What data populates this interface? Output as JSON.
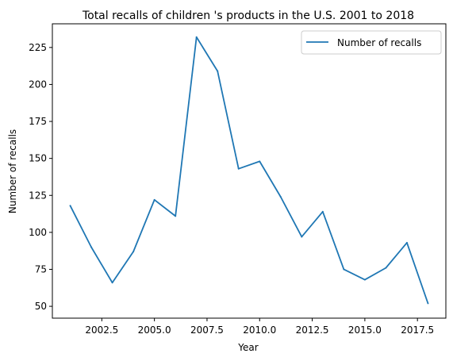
{
  "chart_data": {
    "type": "line",
    "title": "Total recalls of children 's products in the U.S. 2001 to 2018",
    "xlabel": "Year",
    "ylabel": "Number of recalls",
    "x": [
      2001,
      2002,
      2003,
      2004,
      2005,
      2006,
      2007,
      2008,
      2009,
      2010,
      2011,
      2012,
      2013,
      2014,
      2015,
      2016,
      2017,
      2018
    ],
    "series": [
      {
        "name": "Number of recalls",
        "color": "#1f77b4",
        "values": [
          118,
          90,
          66,
          87,
          122,
          111,
          232,
          209,
          143,
          148,
          124,
          97,
          114,
          75,
          68,
          76,
          93,
          52
        ]
      }
    ],
    "xlim": [
      2000.15,
      2018.85
    ],
    "ylim": [
      42,
      241
    ],
    "xticks": [
      2002.5,
      2005.0,
      2007.5,
      2010.0,
      2012.5,
      2015.0,
      2017.5
    ],
    "xtick_labels": [
      "2002.5",
      "2005.0",
      "2007.5",
      "2010.0",
      "2012.5",
      "2015.0",
      "2017.5"
    ],
    "yticks": [
      50,
      75,
      100,
      125,
      150,
      175,
      200,
      225
    ],
    "ytick_labels": [
      "50",
      "75",
      "100",
      "125",
      "150",
      "175",
      "200",
      "225"
    ],
    "grid": false,
    "legend_position": "top-right"
  }
}
